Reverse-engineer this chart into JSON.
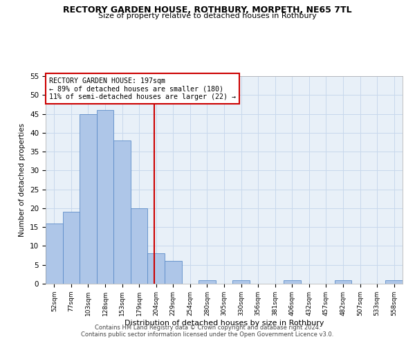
{
  "title": "RECTORY GARDEN HOUSE, ROTHBURY, MORPETH, NE65 7TL",
  "subtitle": "Size of property relative to detached houses in Rothbury",
  "xlabel": "Distribution of detached houses by size in Rothbury",
  "ylabel": "Number of detached properties",
  "bar_labels": [
    "52sqm",
    "77sqm",
    "103sqm",
    "128sqm",
    "153sqm",
    "179sqm",
    "204sqm",
    "229sqm",
    "254sqm",
    "280sqm",
    "305sqm",
    "330sqm",
    "356sqm",
    "381sqm",
    "406sqm",
    "432sqm",
    "457sqm",
    "482sqm",
    "507sqm",
    "533sqm",
    "558sqm"
  ],
  "bar_values": [
    16,
    19,
    45,
    46,
    38,
    20,
    8,
    6,
    0,
    1,
    0,
    1,
    0,
    0,
    1,
    0,
    0,
    1,
    0,
    0,
    1
  ],
  "bar_color": "#aec6e8",
  "bar_edge_color": "#5b8cc8",
  "vline_color": "#cc0000",
  "annotation_text": "RECTORY GARDEN HOUSE: 197sqm\n← 89% of detached houses are smaller (180)\n11% of semi-detached houses are larger (22) →",
  "annotation_box_color": "#cc0000",
  "ylim": [
    0,
    55
  ],
  "yticks": [
    0,
    5,
    10,
    15,
    20,
    25,
    30,
    35,
    40,
    45,
    50,
    55
  ],
  "grid_color": "#c8d8ec",
  "bg_color": "#e8f0f8",
  "footer1": "Contains HM Land Registry data © Crown copyright and database right 2024.",
  "footer2": "Contains public sector information licensed under the Open Government Licence v3.0."
}
